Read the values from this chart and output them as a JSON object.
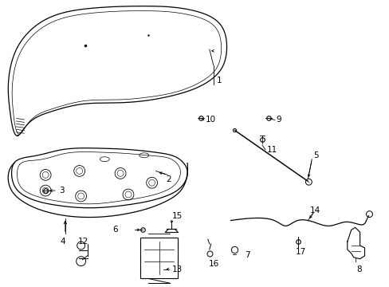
{
  "bg_color": "#ffffff",
  "line_color": "#000000",
  "lw": 0.9,
  "label_size": 7.5
}
